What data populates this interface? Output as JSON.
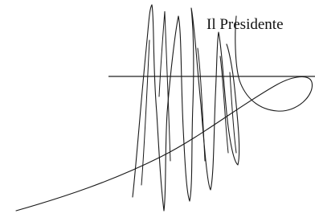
{
  "document": {
    "caption": "Il Presidente"
  }
}
